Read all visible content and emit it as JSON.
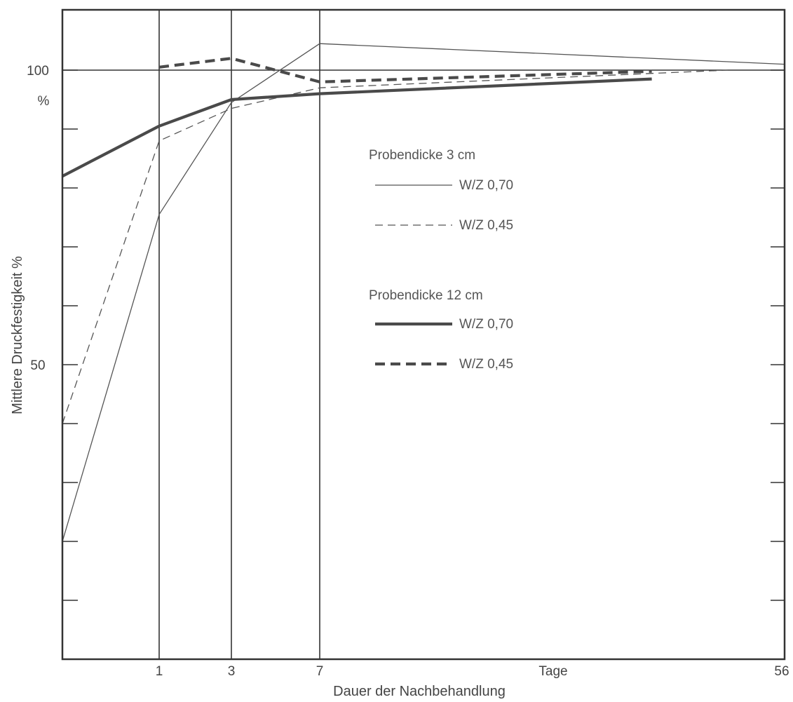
{
  "chart_data": {
    "type": "line",
    "xlabel": "Dauer der Nachbehandlung",
    "ylabel": "Mittlere Druckfestigkeit %",
    "x_tick_labels": [
      {
        "x": 1,
        "label": "1"
      },
      {
        "x": 3,
        "label": "3"
      },
      {
        "x": 7,
        "label": "7"
      },
      {
        "x": 56,
        "label": "56"
      }
    ],
    "x_unit_label": "Tage",
    "y_tick_labels": [
      {
        "y": 100,
        "label": "100"
      },
      {
        "y": 50,
        "label": "50"
      }
    ],
    "y_unit_label": "%",
    "ylim": [
      0,
      110
    ],
    "y_minor_ticks": [
      10,
      20,
      30,
      40,
      50,
      60,
      70,
      80,
      90,
      100
    ],
    "vertical_gridlines_at": [
      1,
      3,
      7
    ],
    "reference_line_y": 100,
    "legend_placement": "center-right",
    "legend_groups": [
      {
        "title": "Probendicke 3 cm",
        "entries": [
          {
            "label": "W/Z 0,70",
            "series_index": 0
          },
          {
            "label": "W/Z 0,45",
            "series_index": 1
          }
        ]
      },
      {
        "title": "Probendicke 12 cm",
        "entries": [
          {
            "label": "W/Z 0,70",
            "series_index": 2
          },
          {
            "label": "W/Z 0,45",
            "series_index": 3
          }
        ]
      }
    ],
    "series": [
      {
        "name": "Probendicke 3 cm W/Z 0,70",
        "style": "thin-solid",
        "points": [
          [
            0,
            20
          ],
          [
            1,
            75.5
          ],
          [
            3,
            94.5
          ],
          [
            7,
            104.5
          ],
          [
            56,
            101
          ]
        ]
      },
      {
        "name": "Probendicke 3 cm W/Z 0,45",
        "style": "thin-dashed",
        "points": [
          [
            0,
            40
          ],
          [
            1,
            88
          ],
          [
            3,
            93.5
          ],
          [
            7,
            97
          ],
          [
            50,
            100
          ]
        ]
      },
      {
        "name": "Probendicke 12 cm W/Z 0,70",
        "style": "thick-solid",
        "points": [
          [
            0,
            82
          ],
          [
            1,
            90.5
          ],
          [
            3,
            95
          ],
          [
            7,
            96
          ],
          [
            42,
            98.5
          ]
        ]
      },
      {
        "name": "Probendicke 12 cm W/Z 0,45",
        "style": "thick-dashed",
        "points": [
          [
            1,
            100.5
          ],
          [
            3,
            102
          ],
          [
            7,
            98
          ],
          [
            42,
            99.8
          ]
        ]
      }
    ]
  }
}
